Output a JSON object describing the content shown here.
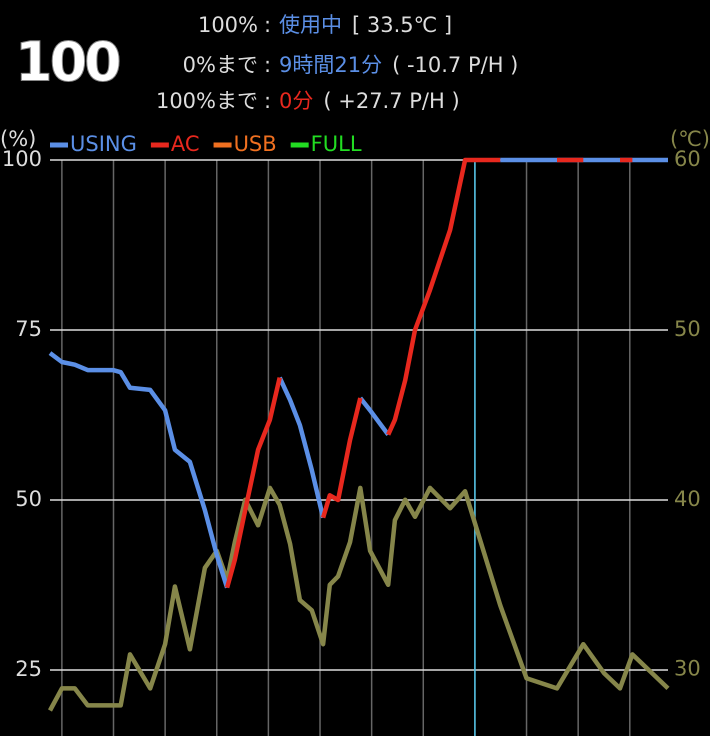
{
  "header": {
    "level": "100",
    "rows": [
      {
        "label": "100%",
        "separator": ":",
        "value": "使用中",
        "value_color": "#5b8fe6",
        "extra": "[ 33.5℃ ]"
      },
      {
        "label": "0%まで",
        "separator": ":",
        "value": "9時間21分",
        "value_color": "#5b8fe6",
        "extra": "( -10.7 P/H )"
      },
      {
        "label": "100%まで",
        "separator": ":",
        "value": "0分",
        "value_color": "#e8281e",
        "extra": "( +27.7 P/H )"
      }
    ]
  },
  "chart_data": {
    "type": "line",
    "y_label": "(%)",
    "y2_label": "(℃)",
    "x": [
      -0.23,
      0,
      0.25,
      0.5,
      0.74,
      0.99,
      1.14,
      1.32,
      1.71,
      2.0,
      2.19,
      2.48,
      2.77,
      3.0,
      3.2,
      3.35,
      3.55,
      3.8,
      4.03,
      4.22,
      4.42,
      4.61,
      4.84,
      5.06,
      5.19,
      5.35,
      5.58,
      5.78,
      5.97,
      6.32,
      6.45,
      6.65,
      6.84,
      7.13,
      7.52,
      7.81,
      8.49,
      9.0,
      9.59,
      10.1,
      10.5,
      10.81,
      11.05,
      11.74
    ],
    "xlim": [
      -0.23,
      11.74
    ],
    "xticks": [
      0,
      1,
      2,
      3,
      4,
      5,
      6,
      7,
      8,
      9,
      10,
      11
    ],
    "current_x": 8,
    "current_color": "#4fc3e8",
    "ylim": [
      15.3,
      100
    ],
    "yticks": [
      25,
      50,
      75,
      100
    ],
    "y2lim": [
      26.1,
      60
    ],
    "y2ticks": [
      30,
      40,
      50,
      60
    ],
    "grid": true,
    "series": [
      {
        "name": "USING",
        "color": "#5b8fe6",
        "values": [
          71.6,
          70.3,
          69.9,
          69.1,
          69.1,
          69.1,
          68.8,
          66.5,
          66.2,
          63.2,
          57.4,
          55.6,
          48.5,
          41.9,
          37.1,
          null,
          null,
          null,
          null,
          68,
          64.7,
          61,
          54.4,
          47.4,
          null,
          null,
          null,
          65,
          63.2,
          59.6,
          null,
          null,
          null,
          null,
          null,
          null,
          100,
          100,
          100,
          100,
          100,
          100,
          100,
          100
        ]
      },
      {
        "name": "AC",
        "color": "#e8281e",
        "values": [
          null,
          null,
          null,
          null,
          null,
          null,
          null,
          null,
          null,
          null,
          null,
          null,
          null,
          null,
          37.1,
          41.2,
          48.5,
          57.4,
          61.8,
          68,
          null,
          null,
          null,
          47.4,
          50.7,
          50,
          58.8,
          65,
          null,
          59.6,
          61.8,
          67.6,
          75,
          80.9,
          89.7,
          100,
          100,
          null,
          100,
          100,
          null,
          100,
          100,
          null
        ]
      },
      {
        "name": "USB",
        "color": "#f07020",
        "values": [
          null,
          null,
          null,
          null,
          null,
          null,
          null,
          null,
          null,
          null,
          null,
          null,
          null,
          null,
          null,
          null,
          null,
          null,
          null,
          null,
          null,
          null,
          null,
          null,
          null,
          null,
          null,
          null,
          null,
          null,
          null,
          null,
          null,
          null,
          null,
          null,
          null,
          null,
          null,
          null,
          null,
          null,
          null,
          null
        ]
      },
      {
        "name": "FULL",
        "color": "#22dd22",
        "values": [
          null,
          null,
          null,
          null,
          null,
          null,
          null,
          null,
          null,
          null,
          null,
          null,
          null,
          null,
          null,
          null,
          null,
          null,
          null,
          null,
          null,
          null,
          null,
          null,
          null,
          null,
          null,
          null,
          null,
          null,
          null,
          null,
          null,
          null,
          null,
          null,
          null,
          null,
          null,
          null,
          null,
          null,
          null,
          null
        ]
      },
      {
        "color": "#86864a",
        "axis": "y2",
        "values": [
          27.6,
          28.9,
          28.9,
          27.9,
          27.9,
          27.9,
          27.9,
          30.9,
          28.9,
          31.5,
          34.9,
          31.2,
          36,
          37,
          35.3,
          37.5,
          40,
          38.5,
          40.7,
          39.7,
          37.4,
          34.1,
          33.5,
          31.5,
          35,
          35.5,
          37.5,
          40.7,
          37,
          35,
          38.8,
          40,
          39,
          40.7,
          39.5,
          40.5,
          33.8,
          29.5,
          28.9,
          31.5,
          29.8,
          28.9,
          30.9,
          28.9
        ]
      }
    ]
  }
}
